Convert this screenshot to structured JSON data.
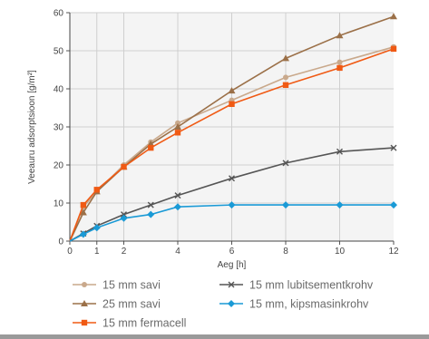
{
  "chart_data": {
    "type": "line",
    "title": "",
    "xlabel": "Aeg [h]",
    "ylabel": "Veeauru adsorptsioon [g/m²]",
    "xlim": [
      0,
      12
    ],
    "ylim": [
      0,
      60
    ],
    "xticks": [
      0,
      1,
      2,
      4,
      6,
      8,
      10,
      12
    ],
    "yticks": [
      0,
      10,
      20,
      30,
      40,
      50,
      60
    ],
    "grid": true,
    "legend_position": "bottom",
    "series": [
      {
        "name": "15 mm savi",
        "color": "#c9a98c",
        "marker": "circle",
        "x": [
          0,
          0.5,
          1,
          2,
          3,
          4,
          6,
          8,
          10,
          12
        ],
        "y": [
          0,
          9,
          13,
          20,
          26,
          31,
          37,
          43,
          47,
          51
        ]
      },
      {
        "name": "25 mm savi",
        "color": "#9b7048",
        "marker": "triangle",
        "x": [
          0,
          0.5,
          1,
          2,
          3,
          4,
          6,
          8,
          10,
          12
        ],
        "y": [
          0,
          7.5,
          13,
          19.5,
          25.5,
          30,
          39.5,
          48,
          54,
          59
        ]
      },
      {
        "name": "15 mm fermacell",
        "color": "#f05a14",
        "marker": "square",
        "x": [
          0,
          0.5,
          1,
          2,
          3,
          4,
          6,
          8,
          10,
          12
        ],
        "y": [
          0,
          9.5,
          13.5,
          19.5,
          24.5,
          28.5,
          36,
          41,
          45.5,
          50.5
        ]
      },
      {
        "name": "15 mm lubitsementkrohv",
        "color": "#555555",
        "marker": "x",
        "x": [
          0,
          0.5,
          1,
          2,
          3,
          4,
          6,
          8,
          10,
          12
        ],
        "y": [
          0,
          2,
          4,
          7,
          9.5,
          12,
          16.5,
          20.5,
          23.5,
          24.5
        ]
      },
      {
        "name": "15 mm, kipsmasinkrohv",
        "color": "#1a9ad6",
        "marker": "diamond",
        "x": [
          0,
          0.5,
          1,
          2,
          3,
          4,
          6,
          8,
          10,
          12
        ],
        "y": [
          0,
          1.8,
          3.5,
          6,
          7,
          9,
          9.5,
          9.5,
          9.5,
          9.5
        ]
      }
    ]
  }
}
